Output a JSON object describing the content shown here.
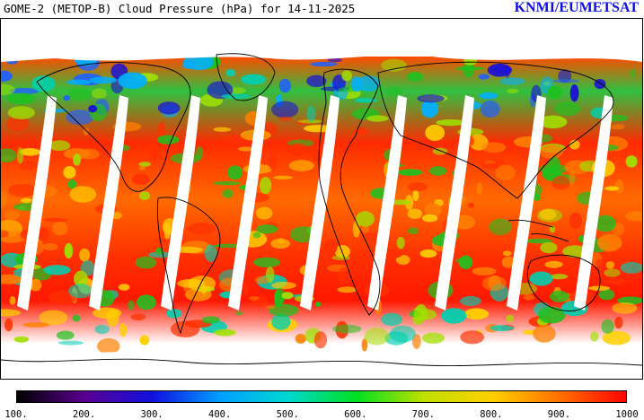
{
  "header": {
    "title": "GOME-2 (METOP-B) Cloud Pressure (hPa) for 14-11-2025",
    "credit": "KNMI/EUMETSAT"
  },
  "map": {
    "product": "cloud-pressure-field",
    "projection": "equirectangular",
    "colors": {
      "low_pressure_high_cloud": "#2010d0",
      "mid": "#20c020",
      "high_pressure_low_cloud": "#ff2000",
      "no_data": "#ffffff",
      "coastline": "#000000"
    }
  },
  "colorbar": {
    "ticks": [
      "100.",
      "200.",
      "300.",
      "400.",
      "500.",
      "600.",
      "700.",
      "800.",
      "900.",
      "1000"
    ],
    "colors": [
      "#000000",
      "#5a0090",
      "#1010e0",
      "#00a0ff",
      "#00d8d0",
      "#00e020",
      "#c0e000",
      "#ffd000",
      "#ff7000",
      "#ff0000"
    ]
  }
}
